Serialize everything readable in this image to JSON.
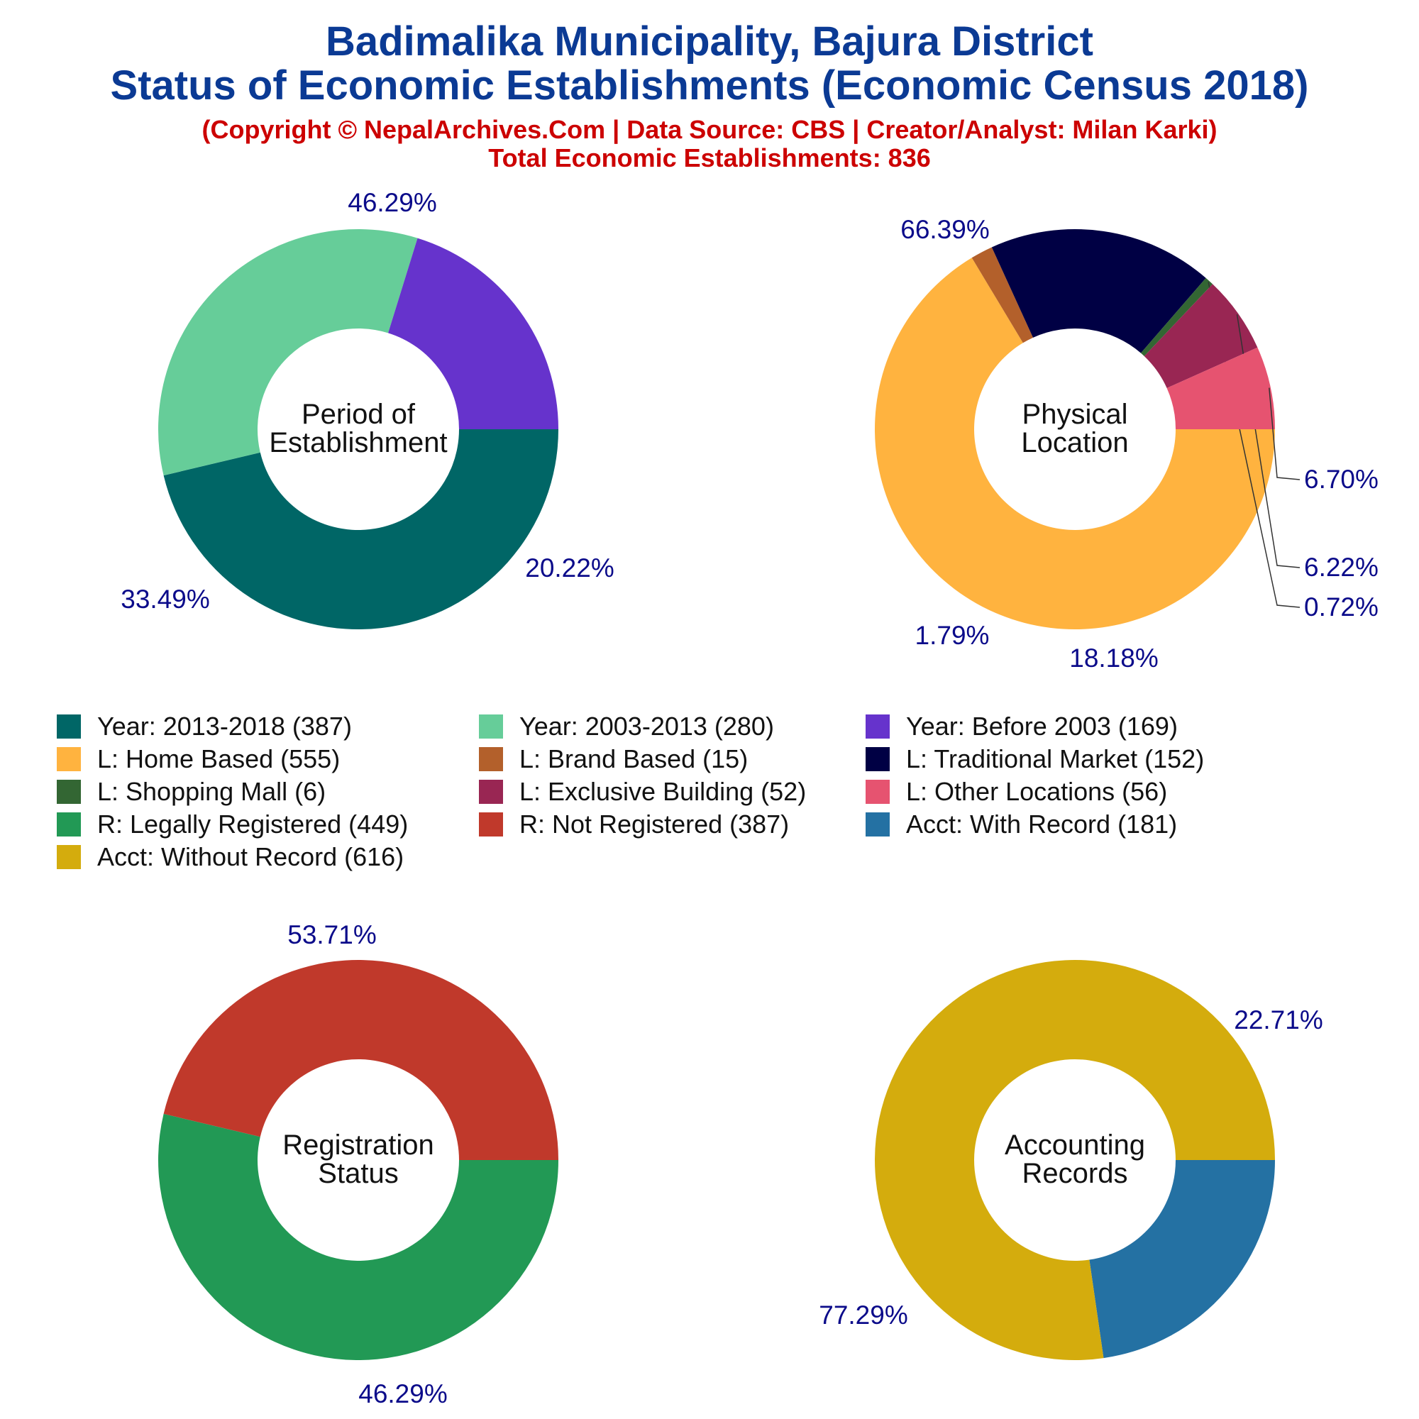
{
  "header": {
    "title_line1": "Badimalika Municipality, Bajura District",
    "title_line2": "Status of Economic Establishments (Economic Census 2018)",
    "subtitle_line1": "(Copyright © NepalArchives.Com | Data Source: CBS | Creator/Analyst: Milan Karki)",
    "subtitle_line2": "Total Economic Establishments: 836"
  },
  "chart_data": [
    {
      "type": "pie",
      "center_label": [
        "Period of",
        "Establishment"
      ],
      "start_angle_deg": 0,
      "categories": [
        "Year: 2013-2018",
        "Year: 2003-2013",
        "Year: Before 2003"
      ],
      "values": [
        387,
        280,
        169
      ],
      "percent_labels": [
        "46.29%",
        "33.49%",
        "20.22%"
      ],
      "colors": [
        "#006666",
        "#66cd99",
        "#6633cc"
      ]
    },
    {
      "type": "pie",
      "center_label": [
        "Physical",
        "Location"
      ],
      "start_angle_deg": 0,
      "categories": [
        "L: Home Based",
        "L: Brand Based",
        "L: Traditional Market",
        "L: Shopping Mall",
        "L: Exclusive Building",
        "L: Other Locations"
      ],
      "values": [
        555,
        15,
        152,
        6,
        52,
        56
      ],
      "percent_labels": [
        "66.39%",
        "1.79%",
        "18.18%",
        "0.72%",
        "6.22%",
        "6.70%"
      ],
      "colors": [
        "#ffb33f",
        "#b3602b",
        "#000044",
        "#336633",
        "#992653",
        "#e65370"
      ]
    },
    {
      "type": "pie",
      "center_label": [
        "Registration",
        "Status"
      ],
      "start_angle_deg": 0,
      "categories": [
        "R: Legally Registered",
        "R: Not Registered"
      ],
      "values": [
        449,
        387
      ],
      "percent_labels": [
        "53.71%",
        "46.29%"
      ],
      "colors": [
        "#229955",
        "#c0392b"
      ]
    },
    {
      "type": "pie",
      "center_label": [
        "Accounting",
        "Records"
      ],
      "start_angle_deg": 0,
      "categories": [
        "Acct: With Record",
        "Acct: Without Record"
      ],
      "values": [
        181,
        616
      ],
      "percent_labels": [
        "22.71%",
        "77.29%"
      ],
      "colors": [
        "#2471a3",
        "#d4ac0d"
      ]
    }
  ],
  "legend": {
    "items": [
      {
        "label": "Year: 2013-2018 (387)",
        "color": "#006666"
      },
      {
        "label": "Year: 2003-2013 (280)",
        "color": "#66cd99"
      },
      {
        "label": "Year: Before 2003 (169)",
        "color": "#6633cc"
      },
      {
        "label": "L: Home Based (555)",
        "color": "#ffb33f"
      },
      {
        "label": "L: Brand Based (15)",
        "color": "#b3602b"
      },
      {
        "label": "L: Traditional Market (152)",
        "color": "#000044"
      },
      {
        "label": "L: Shopping Mall (6)",
        "color": "#336633"
      },
      {
        "label": "L: Exclusive Building (52)",
        "color": "#992653"
      },
      {
        "label": "L: Other Locations (56)",
        "color": "#e65370"
      },
      {
        "label": "R: Legally Registered (449)",
        "color": "#229955"
      },
      {
        "label": "R: Not Registered (387)",
        "color": "#c0392b"
      },
      {
        "label": "Acct: With Record (181)",
        "color": "#2471a3"
      },
      {
        "label": "Acct: Without Record (616)",
        "color": "#d4ac0d"
      }
    ]
  }
}
